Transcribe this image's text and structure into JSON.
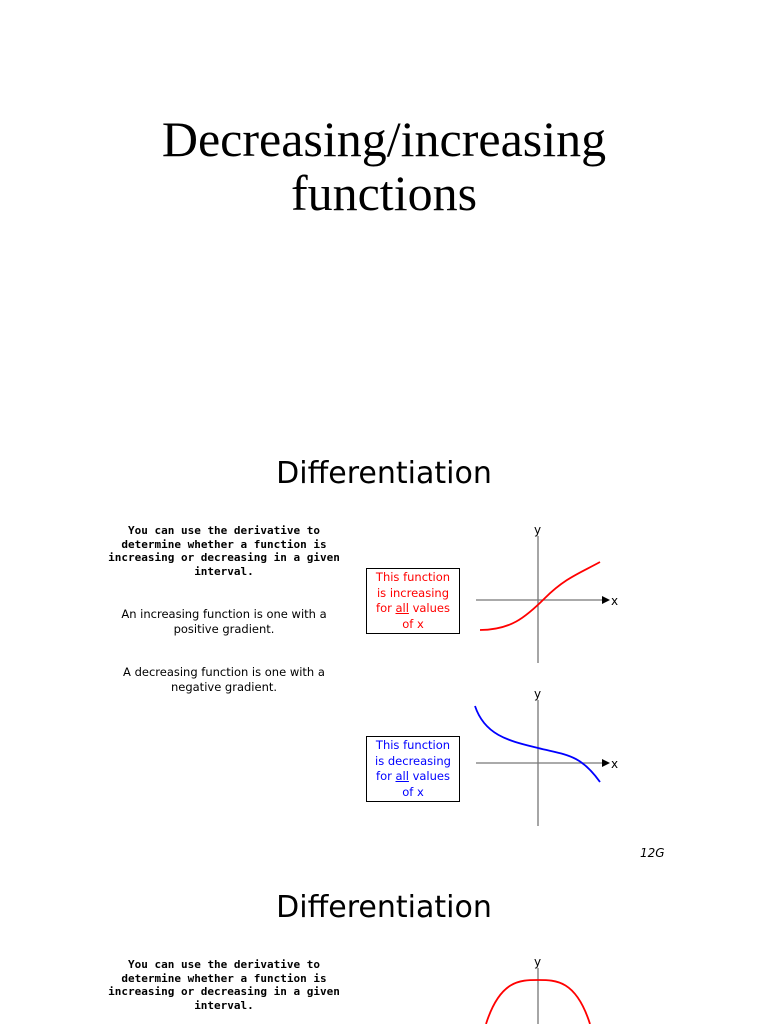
{
  "title": {
    "line1": "Decreasing/increasing",
    "line2": "functions"
  },
  "slide1": {
    "heading": "Differentiation",
    "intro": "You can use the derivative to determine whether a function is increasing or decreasing in a given interval.",
    "increasing_def": "An increasing function is one with a positive gradient.",
    "decreasing_def": "A decreasing function is one with a negative gradient.",
    "callout_increasing": {
      "l1": "This function",
      "l2": "is increasing",
      "for": "for ",
      "all": "all",
      "values": " values",
      "l4": "of x"
    },
    "callout_decreasing": {
      "l1": "This function",
      "l2": "is decreasing",
      "for": "for ",
      "all": "all",
      "values": " values",
      "l4": "of x"
    },
    "axis_x": "x",
    "axis_y": "y",
    "page_number": "12G"
  },
  "slide2": {
    "heading": "Differentiation",
    "intro": "You can use the derivative to determine whether a function is increasing or decreasing in a given interval.",
    "axis_y": "y"
  },
  "colors": {
    "increasing_curve": "#ff0000",
    "decreasing_curve": "#0000ff"
  }
}
